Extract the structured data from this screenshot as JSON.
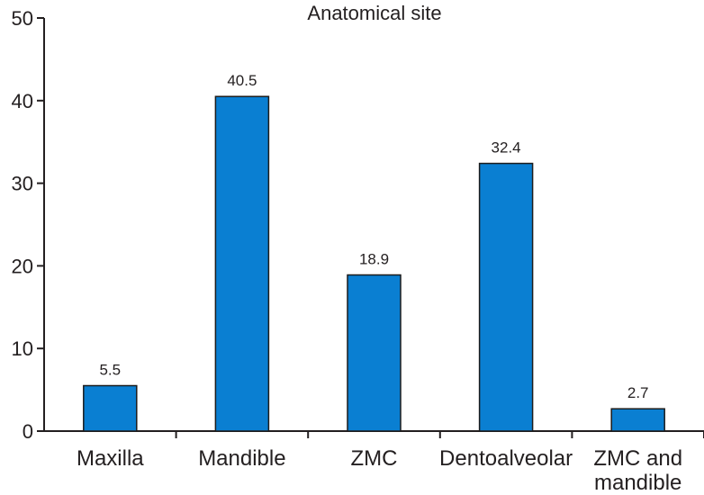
{
  "chart_data": {
    "type": "bar",
    "title": "Anatomical site",
    "categories": [
      [
        "Maxilla"
      ],
      [
        "Mandible"
      ],
      [
        "ZMC"
      ],
      [
        "Dentoalveolar"
      ],
      [
        "ZMC and",
        "mandible"
      ]
    ],
    "values": [
      5.5,
      40.5,
      18.9,
      32.4,
      2.7
    ],
    "data_labels": [
      "5.5",
      "40.5",
      "18.9",
      "32.4",
      "2.7"
    ],
    "yticks": [
      0,
      10,
      20,
      30,
      40,
      50
    ],
    "ylim": [
      0,
      50
    ],
    "xlabel": "",
    "ylabel": "",
    "bar_color": "#0a7fd2",
    "bar_edge_color": "#1c1c1c",
    "axis_color": "#231f20"
  }
}
